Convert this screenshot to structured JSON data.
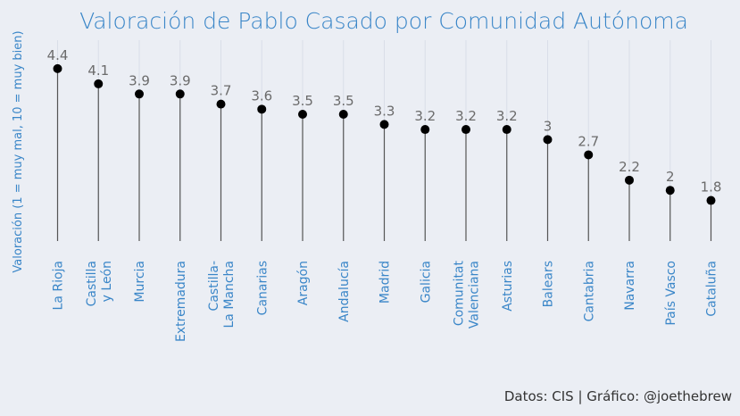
{
  "chart_data": {
    "type": "lollipop",
    "title": "Valoración de Pablo Casado por Comunidad Autónoma",
    "ylabel": "Valoración (1 = muy mal, 10 = muy bien)",
    "xlabel": "",
    "caption": "Datos: CIS | Gráfico: @joethebrew",
    "categories": [
      [
        "La Rioja"
      ],
      [
        "Castilla",
        "y León"
      ],
      [
        "Murcia"
      ],
      [
        "Extremadura"
      ],
      [
        "Castilla-",
        "La Mancha"
      ],
      [
        "Canarias"
      ],
      [
        "Aragón"
      ],
      [
        "Andalucía"
      ],
      [
        "Madrid"
      ],
      [
        "Galicia"
      ],
      [
        "Comunitat",
        "Valenciana"
      ],
      [
        "Asturias"
      ],
      [
        "Balears"
      ],
      [
        "Cantabria"
      ],
      [
        "Navarra"
      ],
      [
        "País Vasco"
      ],
      [
        "Cataluña"
      ]
    ],
    "values": [
      4.4,
      4.1,
      3.9,
      3.9,
      3.7,
      3.6,
      3.5,
      3.5,
      3.3,
      3.2,
      3.2,
      3.2,
      3.0,
      2.7,
      2.2,
      2.0,
      1.8
    ],
    "value_labels": [
      "4.4",
      "4.1",
      "3.9",
      "3.9",
      "3.7",
      "3.6",
      "3.5",
      "3.5",
      "3.3",
      "3.2",
      "3.2",
      "3.2",
      "3",
      "2.7",
      "2.2",
      "2",
      "1.8"
    ],
    "grid": true,
    "legend": "none",
    "colors": {
      "background": "#ebeef4",
      "title": "#3a86c8",
      "tick": "#3a86c8",
      "stem": "#555555",
      "dot": "#000000",
      "data_label": "#6b6b6b",
      "caption": "#333333"
    }
  }
}
